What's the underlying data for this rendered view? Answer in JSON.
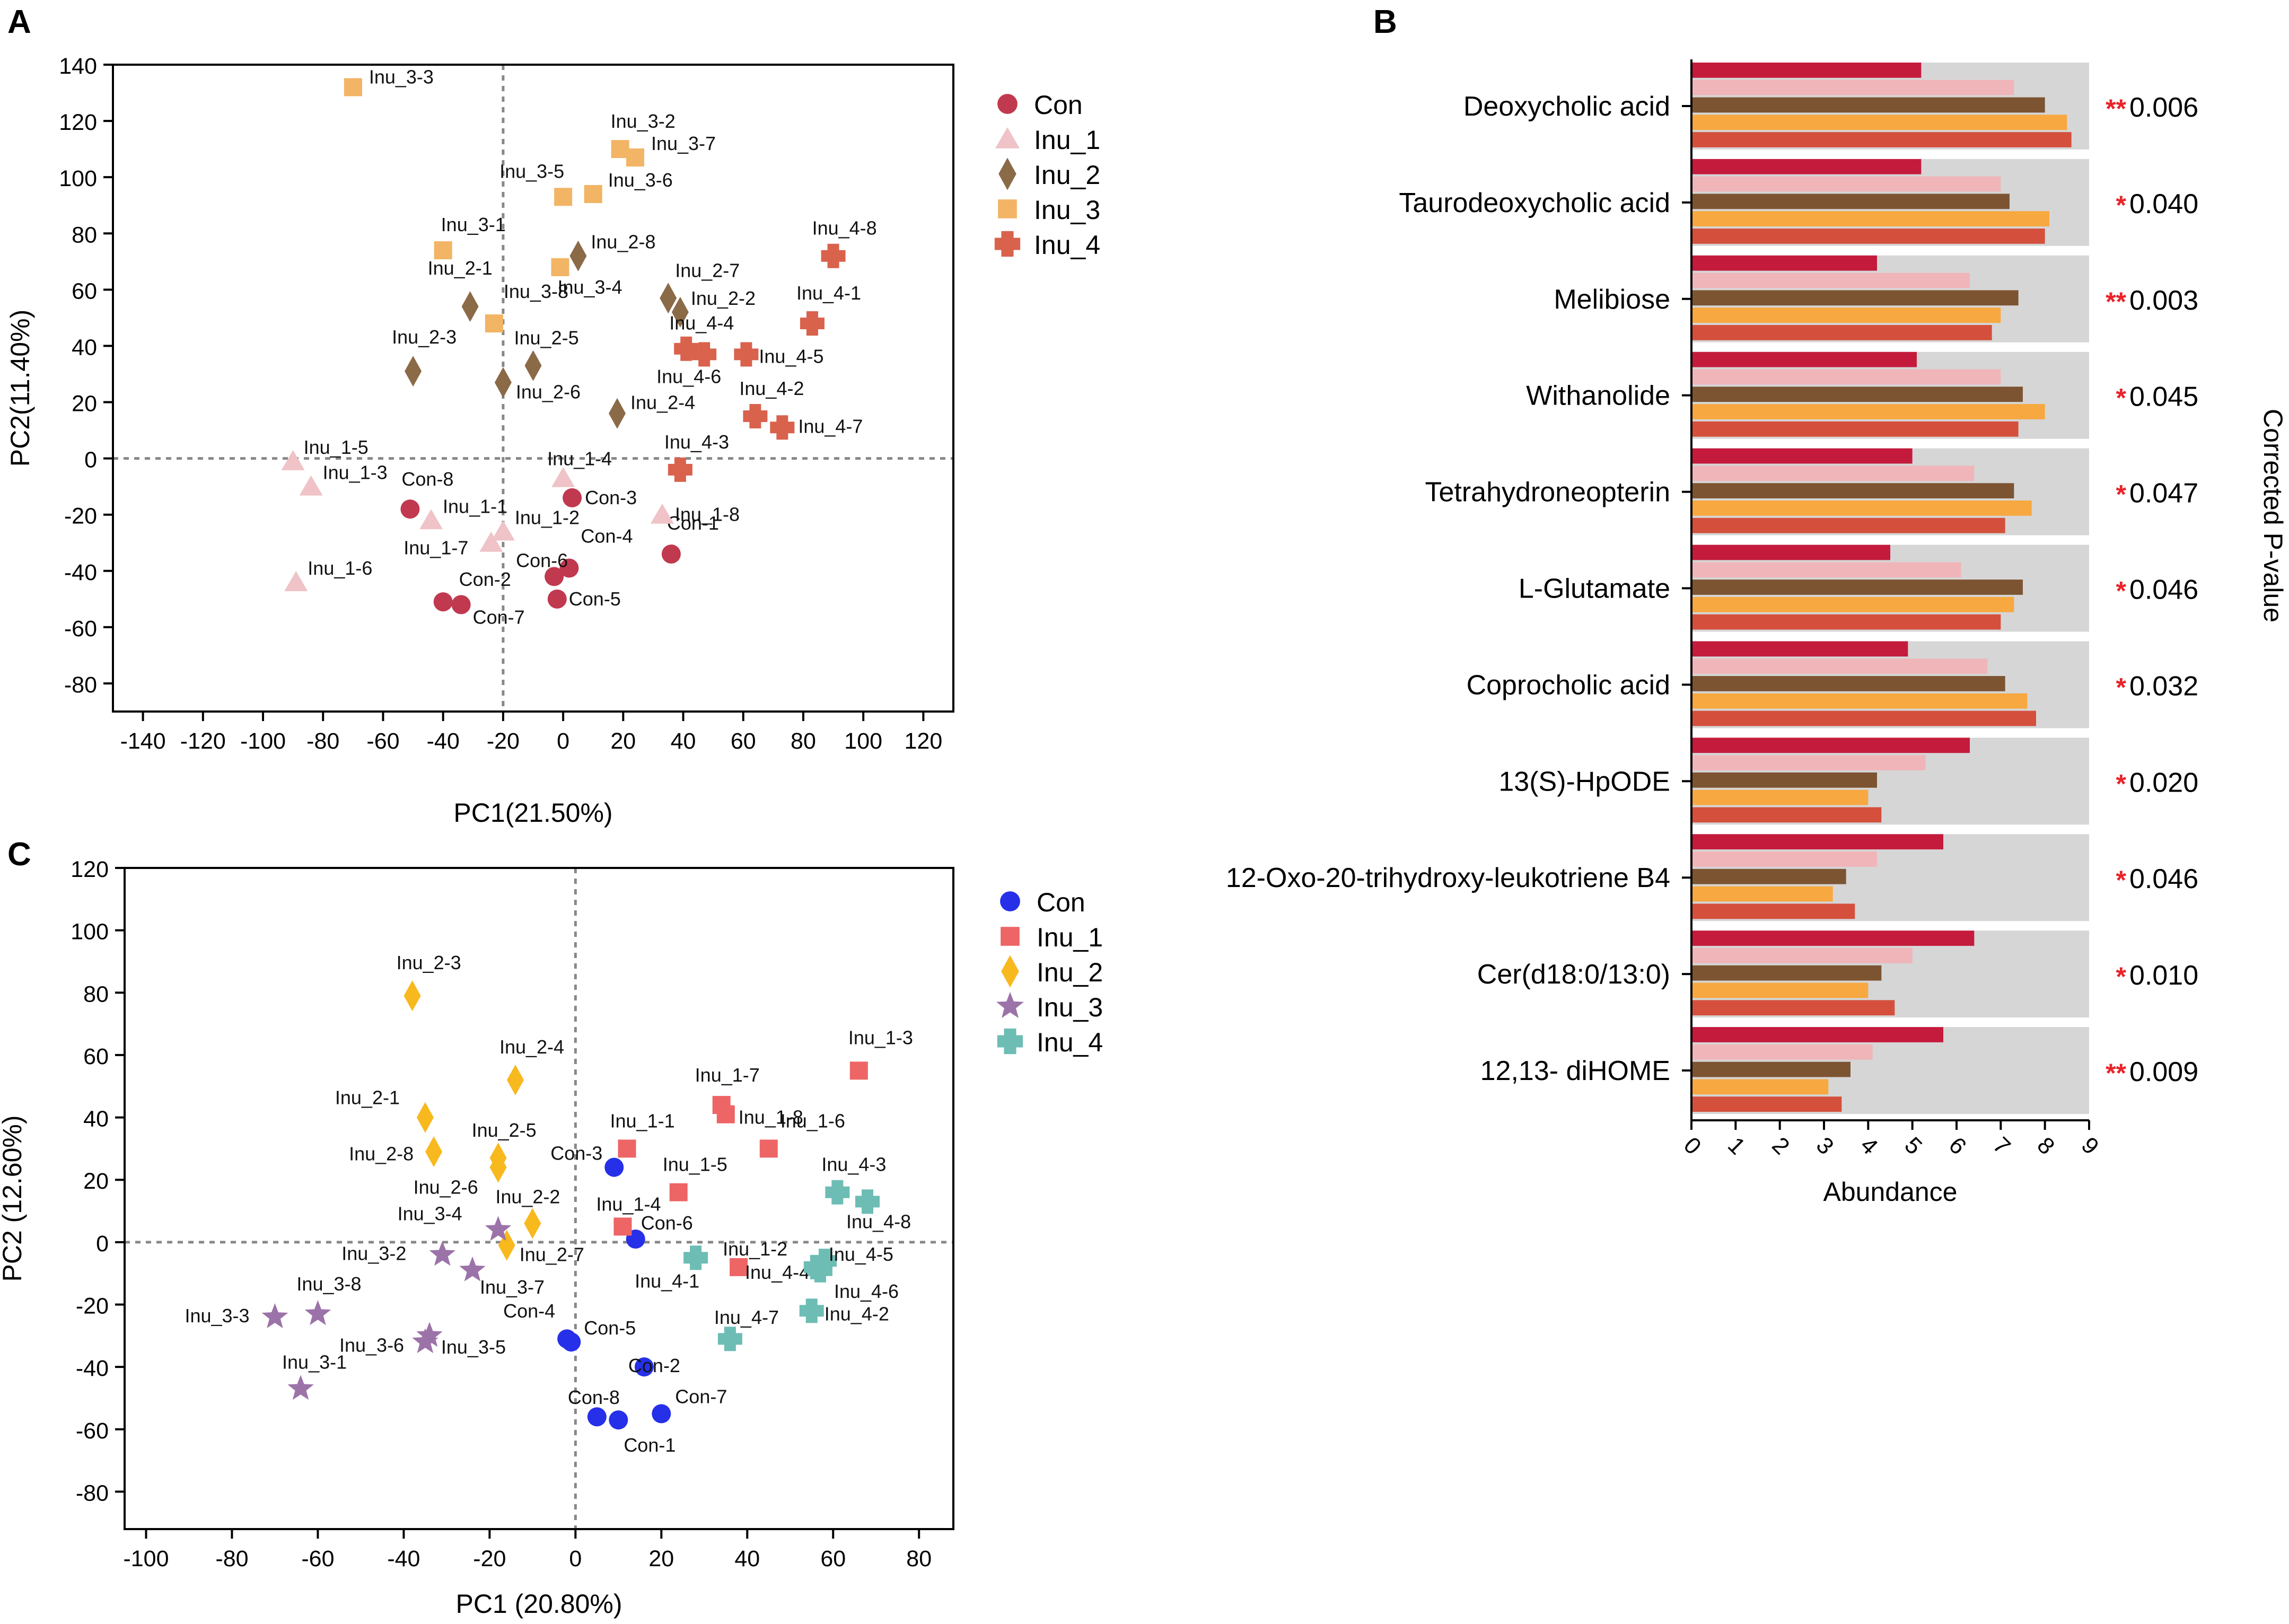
{
  "panels": {
    "a": "A",
    "b": "B",
    "c": "C"
  },
  "colors": {
    "panelA": {
      "Con": "#c0394f",
      "Inu_1": "#efc3c7",
      "Inu_2": "#8b6a47",
      "Inu_3": "#f2b465",
      "Inu_4": "#d9624d"
    },
    "panelC": {
      "Con": "#2630e8",
      "Inu_1": "#ee6565",
      "Inu_2": "#f8b91e",
      "Inu_3": "#9c73a8",
      "Inu_4": "#6dbdb5"
    },
    "panelB_bars": [
      "#c41b3d",
      "#f0b5b9",
      "#7d5432",
      "#f7a840",
      "#d4503c"
    ],
    "panelB_background": "#d6d6d6",
    "star": "#e8232a"
  },
  "chart_data": [
    {
      "id": "A",
      "type": "scatter",
      "xlabel": "PC1(21.50%)",
      "ylabel": "PC2(11.40%)",
      "xlim": [
        -150,
        130
      ],
      "ylim": [
        -90,
        140
      ],
      "xticks": [
        -140,
        -120,
        -100,
        -80,
        -60,
        -40,
        -20,
        0,
        20,
        40,
        60,
        80,
        100,
        120
      ],
      "yticks": [
        140,
        120,
        100,
        80,
        60,
        40,
        20,
        0,
        -20,
        -40,
        -60,
        -80
      ],
      "legend": [
        "Con",
        "Inu_1",
        "Inu_2",
        "Inu_3",
        "Inu_4"
      ],
      "legend_position": "right",
      "reference_lines": {
        "x": -20,
        "y": 0
      },
      "series": [
        {
          "name": "Con",
          "marker": "circle",
          "points": [
            {
              "label": "Con-1",
              "x": 36,
              "y": -34
            },
            {
              "label": "Con-2",
              "x": -40,
              "y": -51
            },
            {
              "label": "Con-3",
              "x": 3,
              "y": -14
            },
            {
              "label": "Con-4",
              "x": 2,
              "y": -39
            },
            {
              "label": "Con-5",
              "x": -2,
              "y": -50
            },
            {
              "label": "Con-6",
              "x": -3,
              "y": -42
            },
            {
              "label": "Con-7",
              "x": -34,
              "y": -52
            },
            {
              "label": "Con-8",
              "x": -51,
              "y": -18
            }
          ]
        },
        {
          "name": "Inu_1",
          "marker": "triangle",
          "points": [
            {
              "label": "Inu_1-1",
              "x": -44,
              "y": -22
            },
            {
              "label": "Inu_1-2",
              "x": -20,
              "y": -26
            },
            {
              "label": "Inu_1-3",
              "x": -84,
              "y": -10
            },
            {
              "label": "Inu_1-4",
              "x": 0,
              "y": -7
            },
            {
              "label": "Inu_1-5",
              "x": -90,
              "y": -1
            },
            {
              "label": "Inu_1-6",
              "x": -89,
              "y": -44
            },
            {
              "label": "Inu_1-7",
              "x": -24,
              "y": -30
            },
            {
              "label": "Inu_1-8",
              "x": 33,
              "y": -20
            }
          ]
        },
        {
          "name": "Inu_2",
          "marker": "diamond",
          "points": [
            {
              "label": "Inu_2-1",
              "x": -31,
              "y": 54
            },
            {
              "label": "Inu_2-2",
              "x": 39,
              "y": 52
            },
            {
              "label": "Inu_2-3",
              "x": -50,
              "y": 31
            },
            {
              "label": "Inu_2-4",
              "x": 18,
              "y": 16
            },
            {
              "label": "Inu_2-5",
              "x": -10,
              "y": 33
            },
            {
              "label": "Inu_2-6",
              "x": -20,
              "y": 27
            },
            {
              "label": "Inu_2-7",
              "x": 35,
              "y": 57
            },
            {
              "label": "Inu_2-8",
              "x": 5,
              "y": 72
            }
          ]
        },
        {
          "name": "Inu_3",
          "marker": "square",
          "points": [
            {
              "label": "Inu_3-1",
              "x": -40,
              "y": 74
            },
            {
              "label": "Inu_3-2",
              "x": 19,
              "y": 110
            },
            {
              "label": "Inu_3-3",
              "x": -70,
              "y": 132
            },
            {
              "label": "Inu_3-4",
              "x": -1,
              "y": 68
            },
            {
              "label": "Inu_3-5",
              "x": 0,
              "y": 93
            },
            {
              "label": "Inu_3-6",
              "x": 10,
              "y": 94
            },
            {
              "label": "Inu_3-7",
              "x": 24,
              "y": 107
            },
            {
              "label": "Inu_3-8",
              "x": -23,
              "y": 48
            }
          ]
        },
        {
          "name": "Inu_4",
          "marker": "plus",
          "points": [
            {
              "label": "Inu_4-1",
              "x": 83,
              "y": 48
            },
            {
              "label": "Inu_4-2",
              "x": 64,
              "y": 15
            },
            {
              "label": "Inu_4-3",
              "x": 39,
              "y": -4
            },
            {
              "label": "Inu_4-4",
              "x": 41,
              "y": 39
            },
            {
              "label": "Inu_4-5",
              "x": 61,
              "y": 37
            },
            {
              "label": "Inu_4-6",
              "x": 47,
              "y": 37
            },
            {
              "label": "Inu_4-7",
              "x": 73,
              "y": 11
            },
            {
              "label": "Inu_4-8",
              "x": 90,
              "y": 72
            }
          ]
        }
      ]
    },
    {
      "id": "B",
      "type": "bar",
      "orientation": "horizontal",
      "xlabel": "Abundance",
      "right_axis_label": "Corrected P-value",
      "xlim": [
        0,
        9
      ],
      "xticks": [
        0,
        1,
        2,
        3,
        4,
        5,
        6,
        7,
        8,
        9
      ],
      "bar_order": [
        "Con",
        "Inu_1",
        "Inu_2",
        "Inu_3",
        "Inu_4"
      ],
      "categories": [
        {
          "name": "Deoxycholic acid",
          "stars": "**",
          "pvalue": "0.006",
          "values": [
            5.2,
            7.3,
            8.0,
            8.5,
            8.6
          ]
        },
        {
          "name": "Taurodeoxycholic acid",
          "stars": "*",
          "pvalue": "0.040",
          "values": [
            5.2,
            7.0,
            7.2,
            8.1,
            8.0
          ]
        },
        {
          "name": "Melibiose",
          "stars": "**",
          "pvalue": "0.003",
          "values": [
            4.2,
            6.3,
            7.4,
            7.0,
            6.8
          ]
        },
        {
          "name": "Withanolide",
          "stars": "*",
          "pvalue": "0.045",
          "values": [
            5.1,
            7.0,
            7.5,
            8.0,
            7.4
          ]
        },
        {
          "name": "Tetrahydroneopterin",
          "stars": "*",
          "pvalue": "0.047",
          "values": [
            5.0,
            6.4,
            7.3,
            7.7,
            7.1
          ]
        },
        {
          "name": "L-Glutamate",
          "stars": "*",
          "pvalue": "0.046",
          "values": [
            4.5,
            6.1,
            7.5,
            7.3,
            7.0
          ]
        },
        {
          "name": "Coprocholic acid",
          "stars": "*",
          "pvalue": "0.032",
          "values": [
            4.9,
            6.7,
            7.1,
            7.6,
            7.8
          ]
        },
        {
          "name": "13(S)-HpODE",
          "stars": "*",
          "pvalue": "0.020",
          "values": [
            6.3,
            5.3,
            4.2,
            4.0,
            4.3
          ]
        },
        {
          "name": "12-Oxo-20-trihydroxy-leukotriene B4",
          "stars": "*",
          "pvalue": "0.046",
          "values": [
            5.7,
            4.2,
            3.5,
            3.2,
            3.7
          ]
        },
        {
          "name": "Cer(d18:0/13:0)",
          "stars": "*",
          "pvalue": "0.010",
          "values": [
            6.4,
            5.0,
            4.3,
            4.0,
            4.6
          ]
        },
        {
          "name": "12,13- diHOME",
          "stars": "**",
          "pvalue": "0.009",
          "values": [
            5.7,
            4.1,
            3.6,
            3.1,
            3.4
          ]
        }
      ]
    },
    {
      "id": "C",
      "type": "scatter",
      "xlabel": "PC1 (20.80%)",
      "ylabel": "PC2 (12.60%)",
      "xlim": [
        -105,
        88
      ],
      "ylim": [
        -92,
        120
      ],
      "xticks": [
        -100,
        -80,
        -60,
        -40,
        -20,
        0,
        20,
        40,
        60,
        80
      ],
      "yticks": [
        120,
        100,
        80,
        60,
        40,
        20,
        0,
        -20,
        -40,
        -60,
        -80
      ],
      "legend": [
        "Con",
        "Inu_1",
        "Inu_2",
        "Inu_3",
        "Inu_4"
      ],
      "legend_position": "right",
      "reference_lines": {
        "x": 0,
        "y": 0
      },
      "series": [
        {
          "name": "Con",
          "marker": "circle",
          "points": [
            {
              "label": "Con-1",
              "x": 10,
              "y": -57
            },
            {
              "label": "Con-2",
              "x": 16,
              "y": -40
            },
            {
              "label": "Con-3",
              "x": 9,
              "y": 24
            },
            {
              "label": "Con-4",
              "x": -2,
              "y": -31
            },
            {
              "label": "Con-5",
              "x": -1,
              "y": -32
            },
            {
              "label": "Con-6",
              "x": 14,
              "y": 1
            },
            {
              "label": "Con-7",
              "x": 20,
              "y": -55
            },
            {
              "label": "Con-8",
              "x": 5,
              "y": -56
            }
          ]
        },
        {
          "name": "Inu_1",
          "marker": "square",
          "points": [
            {
              "label": "Inu_1-1",
              "x": 12,
              "y": 30
            },
            {
              "label": "Inu_1-2",
              "x": 38,
              "y": -8
            },
            {
              "label": "Inu_1-3",
              "x": 66,
              "y": 55
            },
            {
              "label": "Inu_1-4",
              "x": 11,
              "y": 5
            },
            {
              "label": "Inu_1-5",
              "x": 24,
              "y": 16
            },
            {
              "label": "Inu_1-6",
              "x": 45,
              "y": 30
            },
            {
              "label": "Inu_1-7",
              "x": 34,
              "y": 44
            },
            {
              "label": "Inu_1-8",
              "x": 35,
              "y": 41
            }
          ]
        },
        {
          "name": "Inu_2",
          "marker": "diamond",
          "points": [
            {
              "label": "Inu_2-1",
              "x": -35,
              "y": 40
            },
            {
              "label": "Inu_2-2",
              "x": -10,
              "y": 6
            },
            {
              "label": "Inu_2-3",
              "x": -38,
              "y": 79
            },
            {
              "label": "Inu_2-4",
              "x": -14,
              "y": 52
            },
            {
              "label": "Inu_2-5",
              "x": -18,
              "y": 27
            },
            {
              "label": "Inu_2-6",
              "x": -18,
              "y": 24
            },
            {
              "label": "Inu_2-7",
              "x": -16,
              "y": -1
            },
            {
              "label": "Inu_2-8",
              "x": -33,
              "y": 29
            }
          ]
        },
        {
          "name": "Inu_3",
          "marker": "star",
          "points": [
            {
              "label": "Inu_3-1",
              "x": -64,
              "y": -47
            },
            {
              "label": "Inu_3-2",
              "x": -31,
              "y": -4
            },
            {
              "label": "Inu_3-3",
              "x": -70,
              "y": -24
            },
            {
              "label": "Inu_3-4",
              "x": -18,
              "y": 4
            },
            {
              "label": "Inu_3-5",
              "x": -35,
              "y": -32
            },
            {
              "label": "Inu_3-6",
              "x": -34,
              "y": -30
            },
            {
              "label": "Inu_3-7",
              "x": -24,
              "y": -9
            },
            {
              "label": "Inu_3-8",
              "x": -60,
              "y": -23
            }
          ]
        },
        {
          "name": "Inu_4",
          "marker": "plus",
          "points": [
            {
              "label": "Inu_4-1",
              "x": 28,
              "y": -5
            },
            {
              "label": "Inu_4-2",
              "x": 55,
              "y": -22
            },
            {
              "label": "Inu_4-3",
              "x": 61,
              "y": 16
            },
            {
              "label": "Inu_4-4",
              "x": 58,
              "y": -6
            },
            {
              "label": "Inu_4-5",
              "x": 56,
              "y": -8
            },
            {
              "label": "Inu_4-6",
              "x": 57,
              "y": -9
            },
            {
              "label": "Inu_4-7",
              "x": 36,
              "y": -31
            },
            {
              "label": "Inu_4-8",
              "x": 68,
              "y": 13
            }
          ]
        }
      ]
    }
  ]
}
